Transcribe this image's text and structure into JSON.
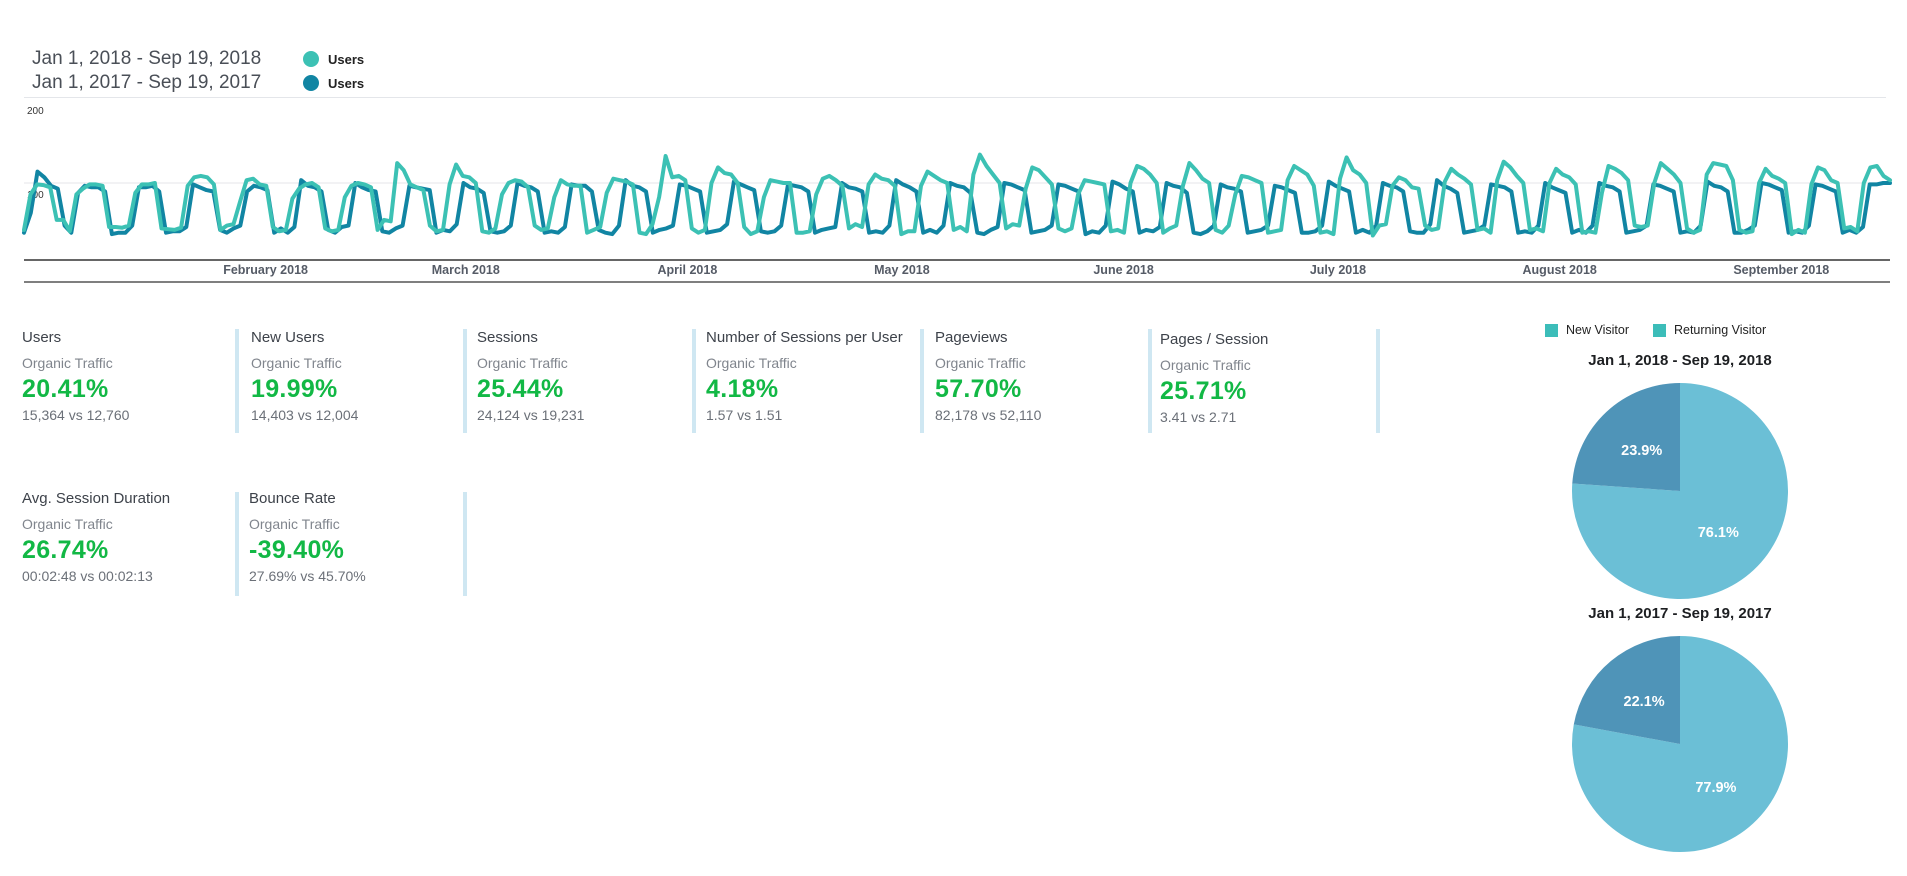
{
  "legend": [
    {
      "range": "Jan 1, 2018 - Sep 19, 2018",
      "name": "Users",
      "color": "#3cc1b4"
    },
    {
      "range": "Jan 1, 2017 - Sep 19, 2017",
      "name": "Users",
      "color": "#1185a3"
    }
  ],
  "chart_data": {
    "type": "line",
    "ylim": [
      0,
      200
    ],
    "y_ticks": [
      "200",
      "100"
    ],
    "x_ticks": [
      "February 2018",
      "March 2018",
      "April 2018",
      "May 2018",
      "June 2018",
      "July 2018",
      "August 2018",
      "September 2018"
    ],
    "x_range": [
      "2018-01-01",
      "2018-09-19"
    ],
    "series": [
      {
        "name": "Users",
        "period": "Jan 1, 2018 - Sep 19, 2018",
        "color": "#3cc1b4",
        "values": [
          34,
          84,
          98,
          97,
          94,
          48,
          48,
          32,
          84,
          92,
          98,
          98,
          96,
          38,
          38,
          37,
          40,
          86,
          98,
          98,
          100,
          36,
          35,
          34,
          37,
          96,
          108,
          110,
          108,
          98,
          34,
          40,
          42,
          74,
          104,
          106,
          98,
          96,
          38,
          32,
          34,
          78,
          92,
          98,
          100,
          94,
          36,
          32,
          34,
          80,
          96,
          100,
          98,
          94,
          34,
          48,
          46,
          128,
          118,
          98,
          94,
          90,
          40,
          32,
          34,
          98,
          126,
          110,
          108,
          100,
          32,
          30,
          36,
          84,
          100,
          104,
          102,
          94,
          40,
          34,
          36,
          80,
          104,
          98,
          96,
          96,
          30,
          34,
          38,
          86,
          106,
          104,
          102,
          98,
          30,
          28,
          42,
          80,
          138,
          108,
          110,
          104,
          36,
          30,
          34,
          100,
          122,
          114,
          112,
          100,
          38,
          28,
          32,
          80,
          104,
          102,
          100,
          100,
          30,
          30,
          32,
          84,
          106,
          110,
          104,
          96,
          36,
          42,
          38,
          98,
          112,
          106,
          104,
          96,
          28,
          32,
          32,
          96,
          116,
          110,
          104,
          100,
          34,
          38,
          32,
          112,
          140,
          124,
          112,
          100,
          36,
          42,
          40,
          92,
          122,
          118,
          108,
          98,
          36,
          32,
          36,
          84,
          104,
          102,
          100,
          98,
          32,
          34,
          30,
          100,
          124,
          120,
          112,
          100,
          30,
          36,
          40,
          96,
          128,
          118,
          106,
          100,
          34,
          30,
          40,
          84,
          110,
          108,
          104,
          100,
          30,
          32,
          34,
          104,
          124,
          118,
          112,
          96,
          30,
          32,
          28,
          106,
          136,
          118,
          112,
          100,
          26,
          40,
          42,
          96,
          108,
          104,
          94,
          92,
          40,
          34,
          36,
          102,
          120,
          112,
          106,
          98,
          34,
          36,
          30,
          104,
          130,
          122,
          110,
          100,
          34,
          36,
          32,
          100,
          120,
          112,
          108,
          98,
          30,
          32,
          30,
          86,
          124,
          120,
          114,
          104,
          40,
          38,
          40,
          100,
          128,
          120,
          112,
          100,
          36,
          30,
          34,
          112,
          128,
          126,
          124,
          104,
          34,
          30,
          32,
          100,
          120,
          110,
          106,
          100,
          28,
          34,
          30,
          98,
          122,
          118,
          104,
          100,
          36,
          38,
          32,
          100,
          122,
          124,
          110,
          104
        ]
      },
      {
        "name": "Users",
        "period": "Jan 1, 2017 - Sep 19, 2017",
        "color": "#1185a3",
        "values": [
          30,
          58,
          116,
          108,
          96,
          92,
          40,
          30,
          86,
          96,
          94,
          94,
          88,
          28,
          30,
          30,
          40,
          94,
          94,
          96,
          88,
          30,
          32,
          32,
          38,
          98,
          94,
          90,
          88,
          34,
          30,
          36,
          40,
          88,
          96,
          94,
          90,
          30,
          36,
          30,
          38,
          104,
          96,
          94,
          88,
          34,
          30,
          38,
          40,
          100,
          94,
          90,
          88,
          32,
          30,
          36,
          40,
          96,
          94,
          92,
          90,
          30,
          34,
          32,
          42,
          100,
          94,
          92,
          86,
          32,
          30,
          32,
          40,
          100,
          96,
          94,
          88,
          30,
          32,
          30,
          38,
          98,
          96,
          96,
          88,
          34,
          30,
          28,
          40,
          104,
          96,
          94,
          88,
          30,
          34,
          36,
          40,
          98,
          96,
          92,
          88,
          30,
          32,
          34,
          42,
          102,
          98,
          94,
          90,
          32,
          30,
          32,
          40,
          98,
          96,
          94,
          88,
          30,
          34,
          36,
          38,
          100,
          94,
          92,
          88,
          30,
          32,
          30,
          40,
          104,
          98,
          94,
          88,
          30,
          34,
          30,
          40,
          100,
          96,
          94,
          86,
          30,
          28,
          34,
          38,
          100,
          98,
          94,
          90,
          30,
          32,
          34,
          40,
          98,
          96,
          92,
          88,
          28,
          32,
          30,
          40,
          102,
          98,
          92,
          88,
          30,
          34,
          32,
          38,
          100,
          96,
          94,
          86,
          30,
          28,
          32,
          40,
          98,
          94,
          92,
          88,
          30,
          32,
          34,
          40,
          96,
          94,
          90,
          86,
          30,
          30,
          32,
          40,
          102,
          96,
          92,
          88,
          30,
          34,
          30,
          40,
          100,
          96,
          94,
          88,
          32,
          30,
          30,
          42,
          104,
          96,
          92,
          86,
          30,
          32,
          34,
          40,
          98,
          96,
          94,
          88,
          30,
          32,
          30,
          40,
          100,
          94,
          90,
          86,
          30,
          34,
          30,
          40,
          100,
          96,
          94,
          88,
          30,
          32,
          34,
          40,
          98,
          96,
          92,
          88,
          30,
          32,
          30,
          40,
          102,
          96,
          94,
          88,
          30,
          30,
          34,
          40,
          100,
          98,
          94,
          90,
          30,
          32,
          30,
          40,
          98,
          96,
          92,
          88,
          30,
          34,
          30,
          38,
          98,
          98,
          100,
          100
        ]
      }
    ]
  },
  "kpis": [
    {
      "title": "Users",
      "sub": "Organic Traffic",
      "pct": "20.41%",
      "cmp": "15,364 vs 12,760"
    },
    {
      "title": "New Users",
      "sub": "Organic Traffic",
      "pct": "19.99%",
      "cmp": "14,403 vs 12,004"
    },
    {
      "title": "Sessions",
      "sub": "Organic Traffic",
      "pct": "25.44%",
      "cmp": "24,124 vs 19,231"
    },
    {
      "title": "Number of Sessions per User",
      "sub": "Organic Traffic",
      "pct": "4.18%",
      "cmp": "1.57 vs 1.51"
    },
    {
      "title": "Pageviews",
      "sub": "Organic Traffic",
      "pct": "57.70%",
      "cmp": "82,178 vs 52,110"
    },
    {
      "title": "Pages / Session",
      "sub": "Organic Traffic",
      "pct": "25.71%",
      "cmp": "3.41 vs 2.71"
    },
    {
      "title": "Avg. Session Duration",
      "sub": "Organic Traffic",
      "pct": "26.74%",
      "cmp": "00:02:48 vs 00:02:13"
    },
    {
      "title": "Bounce Rate",
      "sub": "Organic Traffic",
      "pct": "-39.40%",
      "cmp": "27.69% vs 45.70%"
    }
  ],
  "pie_legend": [
    "New Visitor",
    "Returning Visitor"
  ],
  "pies": [
    {
      "title": "Jan 1, 2018 - Sep 19, 2018",
      "slices": [
        {
          "name": "New Visitor",
          "value": 76.1,
          "label": "76.1%",
          "color": "#6bbfd6"
        },
        {
          "name": "Returning Visitor",
          "value": 23.9,
          "label": "23.9%",
          "color": "#4f94b8"
        }
      ]
    },
    {
      "title": "Jan 1, 2017 - Sep 19, 2017",
      "slices": [
        {
          "name": "New Visitor",
          "value": 77.9,
          "label": "77.9%",
          "color": "#6bbfd6"
        },
        {
          "name": "Returning Visitor",
          "value": 22.1,
          "label": "22.1%",
          "color": "#4f94b8"
        }
      ]
    }
  ]
}
